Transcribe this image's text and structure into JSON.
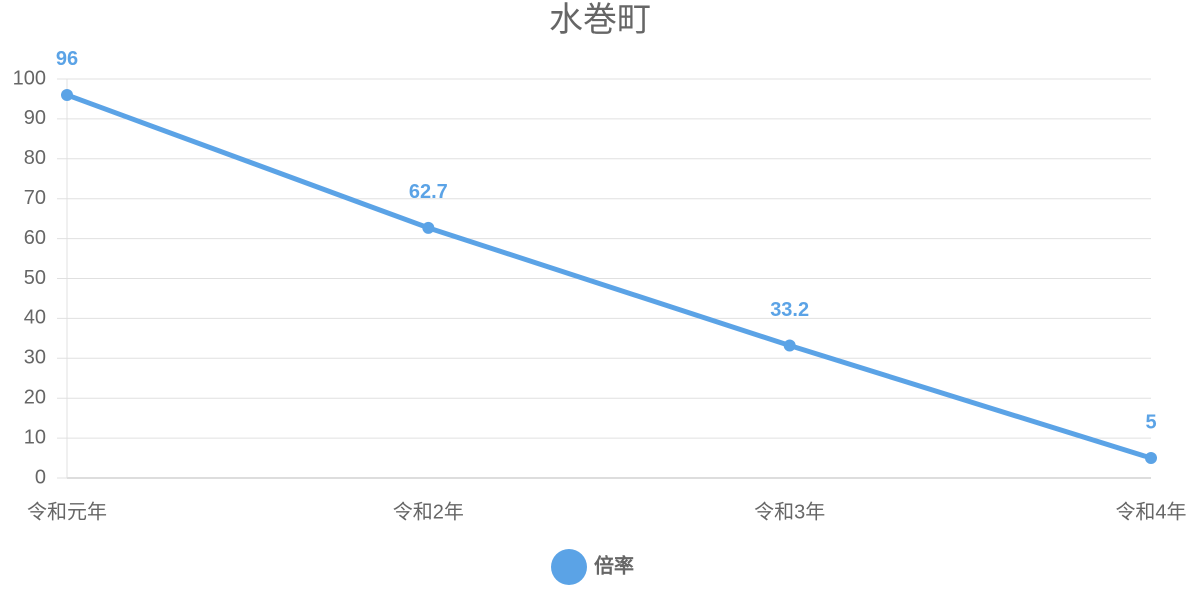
{
  "chart_data": {
    "type": "line",
    "title": "水巻町",
    "categories": [
      "令和元年",
      "令和2年",
      "令和3年",
      "令和4年"
    ],
    "series": [
      {
        "name": "倍率",
        "color": "#5ba3e6",
        "values": [
          96,
          62.7,
          33.2,
          5
        ]
      }
    ],
    "ylim": [
      0,
      100
    ],
    "yticks": [
      0,
      10,
      20,
      30,
      40,
      50,
      60,
      70,
      80,
      90,
      100
    ],
    "grid": true,
    "legend": "bottom"
  }
}
